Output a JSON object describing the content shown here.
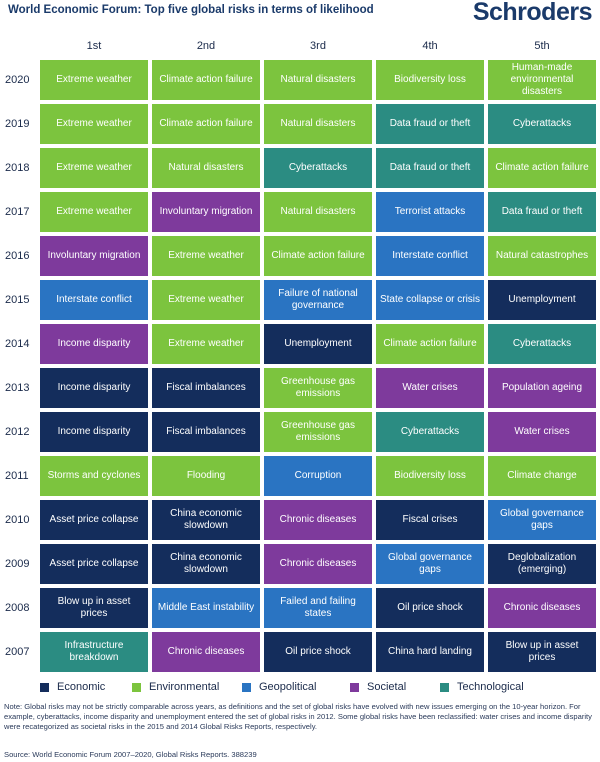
{
  "header": {
    "title": "World Economic Forum: Top five global risks in terms of likelihood",
    "logo": "Schroders"
  },
  "colors": {
    "Economic": "#142d5c",
    "Environmental": "#7cc43e",
    "Geopolitical": "#2a74c2",
    "Societal": "#7e3a9c",
    "Technological": "#2b8c82"
  },
  "chart_data": {
    "type": "table",
    "title": "World Economic Forum: Top five global risks in terms of likelihood",
    "columns": [
      "1st",
      "2nd",
      "3rd",
      "4th",
      "5th"
    ],
    "rows": [
      {
        "year": "2020",
        "cells": [
          {
            "text": "Extreme weather",
            "category": "Environmental"
          },
          {
            "text": "Climate action failure",
            "category": "Environmental"
          },
          {
            "text": "Natural disasters",
            "category": "Environmental"
          },
          {
            "text": "Biodiversity loss",
            "category": "Environmental"
          },
          {
            "text": "Human-made environmental disasters",
            "category": "Environmental"
          }
        ]
      },
      {
        "year": "2019",
        "cells": [
          {
            "text": "Extreme weather",
            "category": "Environmental"
          },
          {
            "text": "Climate action failure",
            "category": "Environmental"
          },
          {
            "text": "Natural disasters",
            "category": "Environmental"
          },
          {
            "text": "Data fraud or theft",
            "category": "Technological"
          },
          {
            "text": "Cyberattacks",
            "category": "Technological"
          }
        ]
      },
      {
        "year": "2018",
        "cells": [
          {
            "text": "Extreme weather",
            "category": "Environmental"
          },
          {
            "text": "Natural disasters",
            "category": "Environmental"
          },
          {
            "text": "Cyberattacks",
            "category": "Technological"
          },
          {
            "text": "Data fraud or theft",
            "category": "Technological"
          },
          {
            "text": "Climate action failure",
            "category": "Environmental"
          }
        ]
      },
      {
        "year": "2017",
        "cells": [
          {
            "text": "Extreme weather",
            "category": "Environmental"
          },
          {
            "text": "Involuntary migration",
            "category": "Societal"
          },
          {
            "text": "Natural disasters",
            "category": "Environmental"
          },
          {
            "text": "Terrorist attacks",
            "category": "Geopolitical"
          },
          {
            "text": "Data fraud or theft",
            "category": "Technological"
          }
        ]
      },
      {
        "year": "2016",
        "cells": [
          {
            "text": "Involuntary migration",
            "category": "Societal"
          },
          {
            "text": "Extreme weather",
            "category": "Environmental"
          },
          {
            "text": "Climate action failure",
            "category": "Environmental"
          },
          {
            "text": "Interstate conflict",
            "category": "Geopolitical"
          },
          {
            "text": "Natural catastrophes",
            "category": "Environmental"
          }
        ]
      },
      {
        "year": "2015",
        "cells": [
          {
            "text": "Interstate conflict",
            "category": "Geopolitical"
          },
          {
            "text": "Extreme weather",
            "category": "Environmental"
          },
          {
            "text": "Failure of national governance",
            "category": "Geopolitical"
          },
          {
            "text": "State collapse or crisis",
            "category": "Geopolitical"
          },
          {
            "text": "Unemployment",
            "category": "Economic"
          }
        ]
      },
      {
        "year": "2014",
        "cells": [
          {
            "text": "Income disparity",
            "category": "Societal"
          },
          {
            "text": "Extreme weather",
            "category": "Environmental"
          },
          {
            "text": "Unemployment",
            "category": "Economic"
          },
          {
            "text": "Climate action failure",
            "category": "Environmental"
          },
          {
            "text": "Cyberattacks",
            "category": "Technological"
          }
        ]
      },
      {
        "year": "2013",
        "cells": [
          {
            "text": "Income disparity",
            "category": "Economic"
          },
          {
            "text": "Fiscal imbalances",
            "category": "Economic"
          },
          {
            "text": "Greenhouse gas emissions",
            "category": "Environmental"
          },
          {
            "text": "Water crises",
            "category": "Societal"
          },
          {
            "text": "Population ageing",
            "category": "Societal"
          }
        ]
      },
      {
        "year": "2012",
        "cells": [
          {
            "text": "Income disparity",
            "category": "Economic"
          },
          {
            "text": "Fiscal imbalances",
            "category": "Economic"
          },
          {
            "text": "Greenhouse gas emissions",
            "category": "Environmental"
          },
          {
            "text": "Cyberattacks",
            "category": "Technological"
          },
          {
            "text": "Water crises",
            "category": "Societal"
          }
        ]
      },
      {
        "year": "2011",
        "cells": [
          {
            "text": "Storms and cyclones",
            "category": "Environmental"
          },
          {
            "text": "Flooding",
            "category": "Environmental"
          },
          {
            "text": "Corruption",
            "category": "Geopolitical"
          },
          {
            "text": "Biodiversity loss",
            "category": "Environmental"
          },
          {
            "text": "Climate change",
            "category": "Environmental"
          }
        ]
      },
      {
        "year": "2010",
        "cells": [
          {
            "text": "Asset price collapse",
            "category": "Economic"
          },
          {
            "text": "China economic slowdown",
            "category": "Economic"
          },
          {
            "text": "Chronic diseases",
            "category": "Societal"
          },
          {
            "text": "Fiscal crises",
            "category": "Economic"
          },
          {
            "text": "Global governance gaps",
            "category": "Geopolitical"
          }
        ]
      },
      {
        "year": "2009",
        "cells": [
          {
            "text": "Asset price collapse",
            "category": "Economic"
          },
          {
            "text": "China economic slowdown",
            "category": "Economic"
          },
          {
            "text": "Chronic diseases",
            "category": "Societal"
          },
          {
            "text": "Global governance gaps",
            "category": "Geopolitical"
          },
          {
            "text": "Deglobalization (emerging)",
            "category": "Economic"
          }
        ]
      },
      {
        "year": "2008",
        "cells": [
          {
            "text": "Blow up in asset prices",
            "category": "Economic"
          },
          {
            "text": "Middle East instability",
            "category": "Geopolitical"
          },
          {
            "text": "Failed and failing states",
            "category": "Geopolitical"
          },
          {
            "text": "Oil price shock",
            "category": "Economic"
          },
          {
            "text": "Chronic diseases",
            "category": "Societal"
          }
        ]
      },
      {
        "year": "2007",
        "cells": [
          {
            "text": "Infrastructure breakdown",
            "category": "Technological"
          },
          {
            "text": "Chronic diseases",
            "category": "Societal"
          },
          {
            "text": "Oil price shock",
            "category": "Economic"
          },
          {
            "text": "China hard landing",
            "category": "Economic"
          },
          {
            "text": "Blow up in asset prices",
            "category": "Economic"
          }
        ]
      }
    ],
    "legend": [
      "Economic",
      "Environmental",
      "Geopolitical",
      "Societal",
      "Technological"
    ],
    "legend_position": "bottom"
  },
  "note": "Note: Global risks may not be strictly comparable across years, as definitions and the set of global risks have evolved with new issues emerging on the 10-year horizon. For example, cyberattacks, income disparity and unemployment entered the set of global risks in 2012. Some global risks have been reclassified: water crises and income disparity were recategorized as societal risks in the 2015 and 2014 Global Risks Reports, respectively.",
  "source": "Source: World Economic Forum 2007–2020, Global Risks Reports. 388239"
}
